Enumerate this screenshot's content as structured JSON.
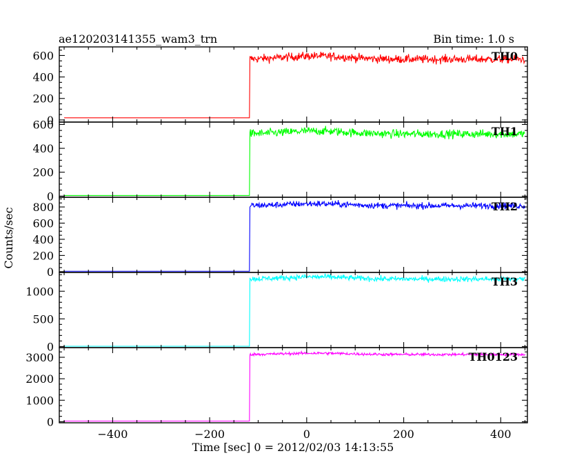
{
  "header": {
    "left_title": "ae120203141355_wam3_trn",
    "right_title": "Bin time: 1.0 s"
  },
  "axes": {
    "xlabel": "Time [sec] 0 = 2012/02/03 14:13:55",
    "ylabel": "Counts/sec"
  },
  "chart_data": {
    "type": "line",
    "x_range": [
      -510,
      455
    ],
    "x_ticks": [
      -400,
      -200,
      0,
      200,
      400
    ],
    "x_start": -500,
    "x_end": 450,
    "step_time": -117,
    "panels": [
      {
        "name": "TH0",
        "color": "#ff0000",
        "ylim": [
          -20,
          680
        ],
        "yticks": [
          0,
          200,
          400,
          600
        ],
        "y_minor": 50,
        "baseline": 20,
        "level": 565,
        "noise": 55,
        "bump": 30
      },
      {
        "name": "TH1",
        "color": "#00ff00",
        "ylim": [
          -10,
          620
        ],
        "yticks": [
          0,
          200,
          400,
          600
        ],
        "y_minor": 50,
        "baseline": 5,
        "level": 520,
        "noise": 50,
        "bump": 25
      },
      {
        "name": "TH2",
        "color": "#0000ff",
        "ylim": [
          -10,
          920
        ],
        "yticks": [
          0,
          200,
          400,
          600,
          800
        ],
        "y_minor": 50,
        "baseline": 5,
        "level": 815,
        "noise": 55,
        "bump": 25
      },
      {
        "name": "TH3",
        "color": "#00ffff",
        "ylim": [
          -20,
          1340
        ],
        "yticks": [
          0,
          500,
          1000
        ],
        "y_minor": 100,
        "baseline": 5,
        "level": 1220,
        "noise": 70,
        "bump": 40
      },
      {
        "name": "TH0123",
        "color": "#ff00ff",
        "ylim": [
          -50,
          3450
        ],
        "yticks": [
          0,
          1000,
          2000,
          3000
        ],
        "y_minor": 250,
        "baseline": 30,
        "level": 3130,
        "noise": 90,
        "bump": 60
      }
    ]
  }
}
